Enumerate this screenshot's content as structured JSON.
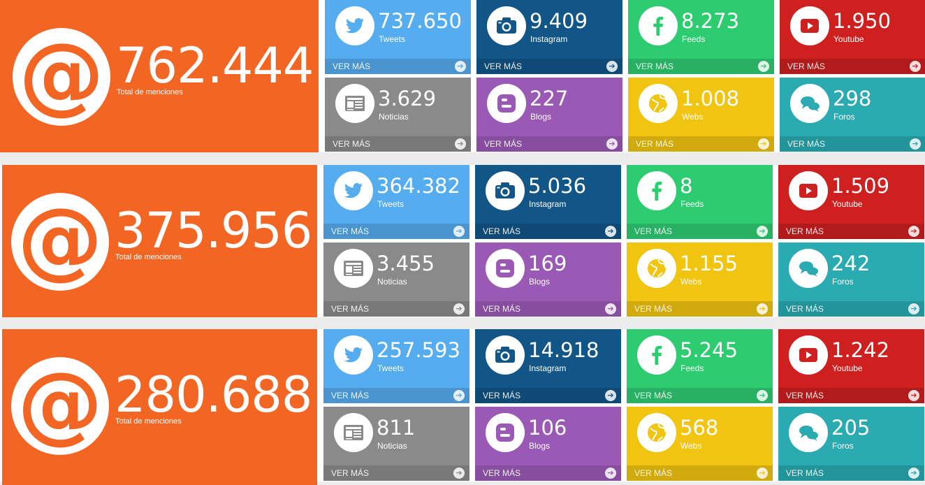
{
  "colors": {
    "orange": "#f26522",
    "twitter": "#55acee",
    "instagram": "#125688",
    "facebook": "#2ecc71",
    "youtube": "#cd201f",
    "news": "#8a8a8a",
    "blogs": "#9b59b6",
    "webs": "#f1c40f",
    "forums": "#2aabb2"
  },
  "panels": [
    {
      "total": "762.444",
      "total_label": "Total de menciones",
      "tiles": [
        {
          "number": "737.650",
          "label": "Tweets",
          "more": "VER MÁS",
          "icon": "twitter-icon"
        },
        {
          "number": "9.409",
          "label": "Instagram",
          "more": "VER MÁS",
          "icon": "camera-icon"
        },
        {
          "number": "8.273",
          "label": "Feeds",
          "more": "VER MÁS",
          "icon": "facebook-icon"
        },
        {
          "number": "1.950",
          "label": "Youtube",
          "more": "VER MÁS",
          "icon": "youtube-icon"
        },
        {
          "number": "3.629",
          "label": "Noticias",
          "more": "VER MÁS",
          "icon": "newspaper-icon"
        },
        {
          "number": "227",
          "label": "Blogs",
          "more": "VER MÁS",
          "icon": "blogger-icon"
        },
        {
          "number": "1.008",
          "label": "Webs",
          "more": "VER MÁS",
          "icon": "globe-icon"
        },
        {
          "number": "298",
          "label": "Foros",
          "more": "VER MÁS",
          "icon": "chat-bubbles-icon"
        }
      ]
    },
    {
      "total": "375.956",
      "total_label": "Total de menciones",
      "tiles": [
        {
          "number": "364.382",
          "label": "Tweets",
          "more": "VER MÁS",
          "icon": "twitter-icon"
        },
        {
          "number": "5.036",
          "label": "Instagram",
          "more": "VER MÁS",
          "icon": "camera-icon"
        },
        {
          "number": "8",
          "label": "Feeds",
          "more": "VER MÁS",
          "icon": "facebook-icon"
        },
        {
          "number": "1.509",
          "label": "Youtube",
          "more": "VER MÁS",
          "icon": "youtube-icon"
        },
        {
          "number": "3.455",
          "label": "Noticias",
          "more": "VER MÁS",
          "icon": "newspaper-icon"
        },
        {
          "number": "169",
          "label": "Blogs",
          "more": "VER MÁS",
          "icon": "blogger-icon"
        },
        {
          "number": "1.155",
          "label": "Webs",
          "more": "VER MÁS",
          "icon": "globe-icon"
        },
        {
          "number": "242",
          "label": "Foros",
          "more": "VER MÁS",
          "icon": "chat-bubbles-icon"
        }
      ]
    },
    {
      "total": "280.688",
      "total_label": "Total de menciones",
      "tiles": [
        {
          "number": "257.593",
          "label": "Tweets",
          "more": "VER MÁS",
          "icon": "twitter-icon"
        },
        {
          "number": "14.918",
          "label": "Instagram",
          "more": "VER MÁS",
          "icon": "camera-icon"
        },
        {
          "number": "5.245",
          "label": "Feeds",
          "more": "VER MÁS",
          "icon": "facebook-icon"
        },
        {
          "number": "1.242",
          "label": "Youtube",
          "more": "VER MÁS",
          "icon": "youtube-icon"
        },
        {
          "number": "811",
          "label": "Noticias",
          "more": "VER MÁS",
          "icon": "newspaper-icon"
        },
        {
          "number": "106",
          "label": "Blogs",
          "more": "VER MÁS",
          "icon": "blogger-icon"
        },
        {
          "number": "568",
          "label": "Webs",
          "more": "VER MÁS",
          "icon": "globe-icon"
        },
        {
          "number": "205",
          "label": "Foros",
          "more": "VER MÁS",
          "icon": "chat-bubbles-icon"
        }
      ]
    }
  ]
}
